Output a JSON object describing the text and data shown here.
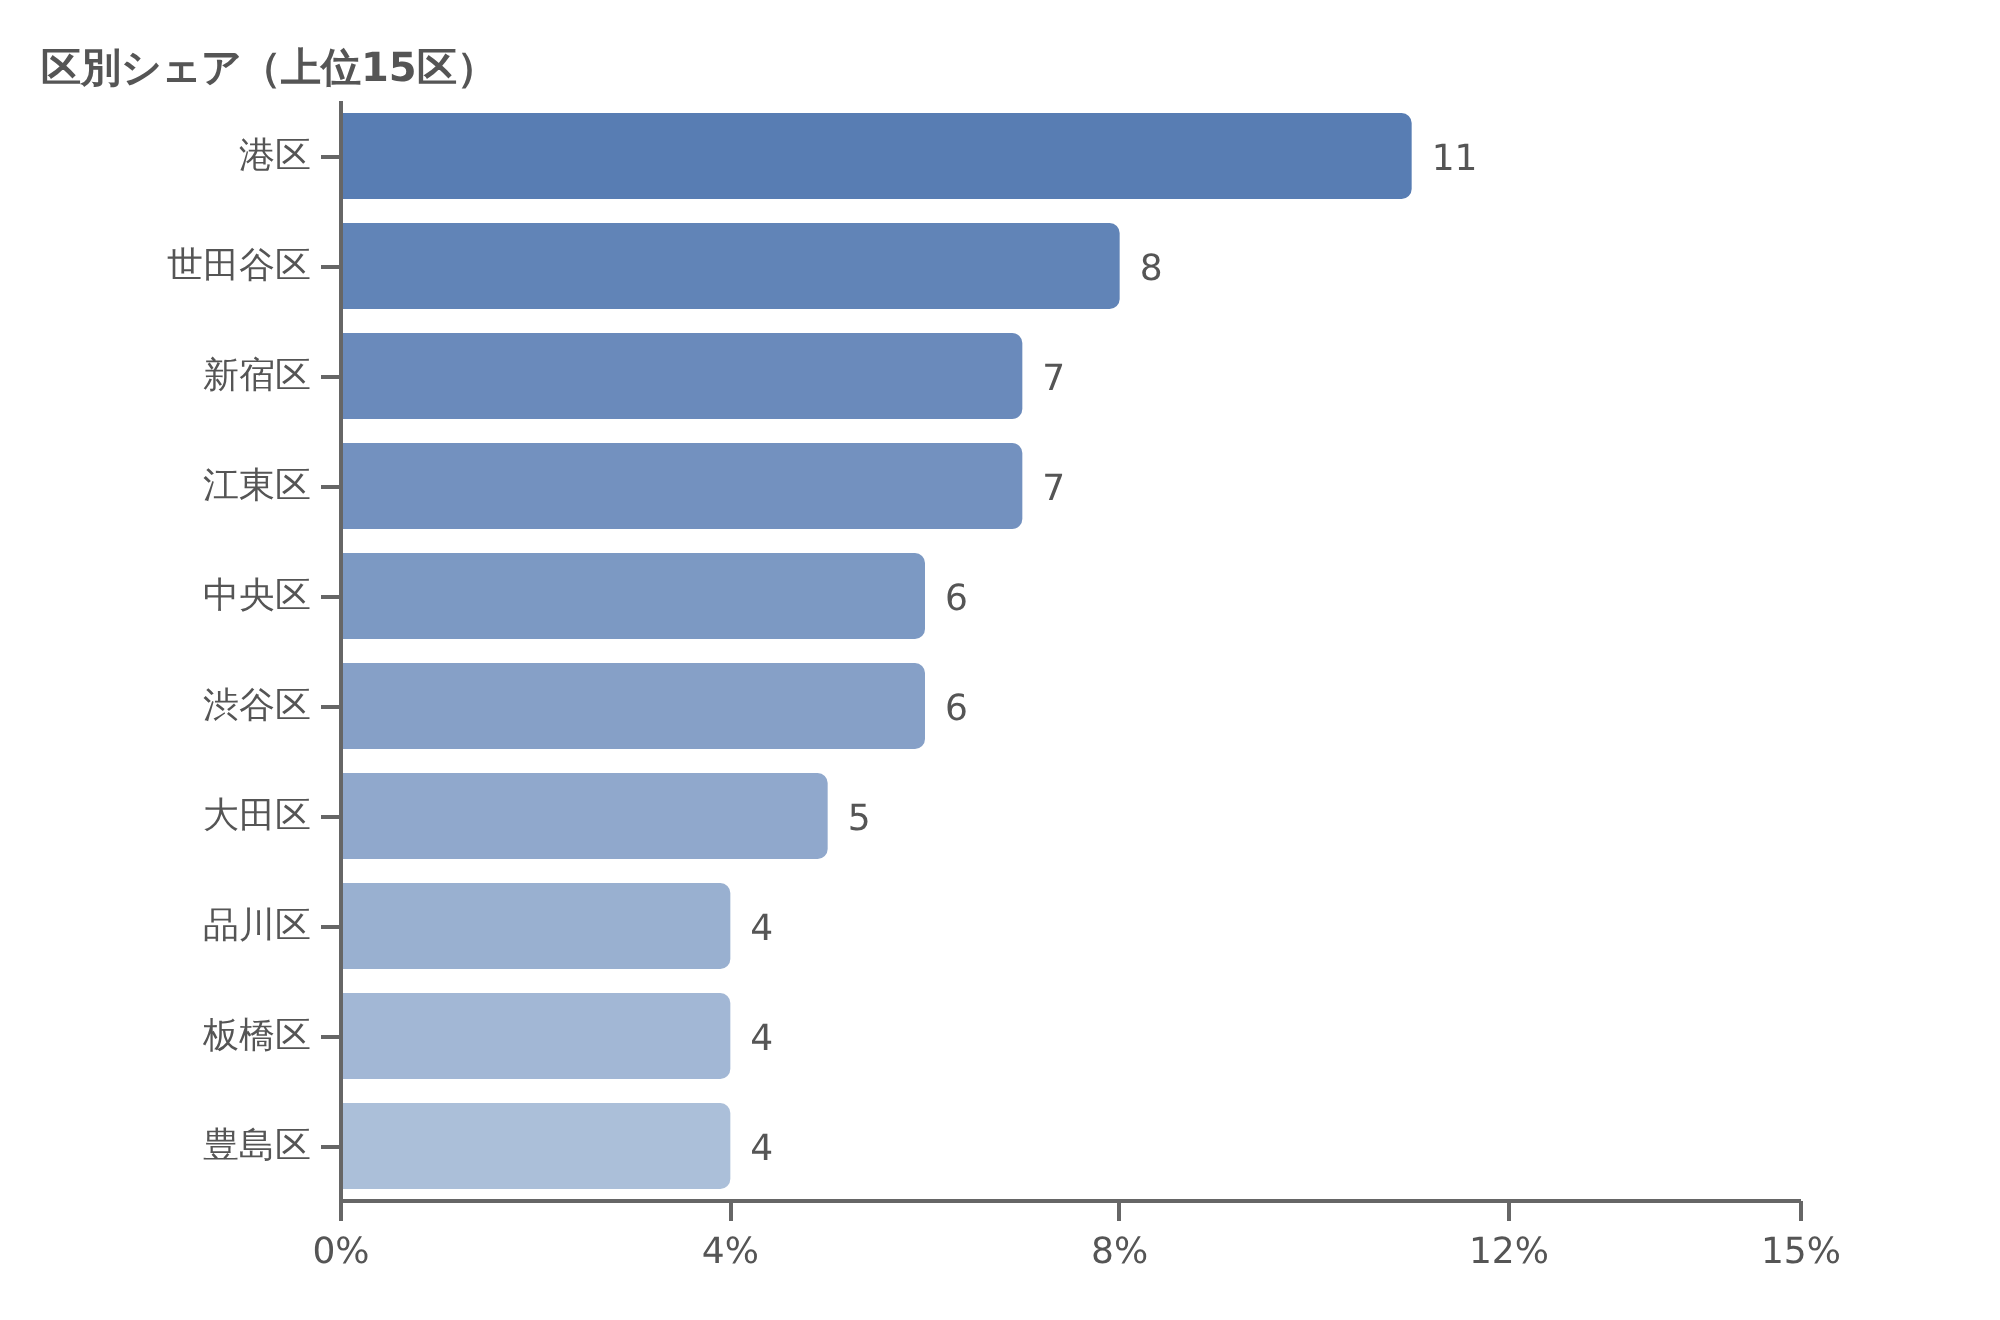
{
  "chart_data": {
    "type": "bar",
    "orientation": "horizontal",
    "title": "区別シェア（上位15区）",
    "categories": [
      "港区",
      "世田谷区",
      "新宿区",
      "江東区",
      "中央区",
      "渋谷区",
      "大田区",
      "品川区",
      "板橋区",
      "豊島区"
    ],
    "values": [
      11,
      8,
      7,
      7,
      6,
      6,
      5,
      4,
      4,
      4
    ],
    "colors": [
      "#587db3",
      "#6184b7",
      "#6a8abb",
      "#7391bf",
      "#7c99c3",
      "#86a0c7",
      "#90a8cc",
      "#99b0d0",
      "#a2b7d5",
      "#abbfd9"
    ],
    "xlim": [
      0,
      15
    ],
    "xticks": [
      {
        "value": 0,
        "label": "0%"
      },
      {
        "value": 4,
        "label": "4%"
      },
      {
        "value": 8,
        "label": "8%"
      },
      {
        "value": 12,
        "label": "12%"
      },
      {
        "value": 15,
        "label": "15%"
      }
    ],
    "data_labels": true,
    "grid": false
  }
}
